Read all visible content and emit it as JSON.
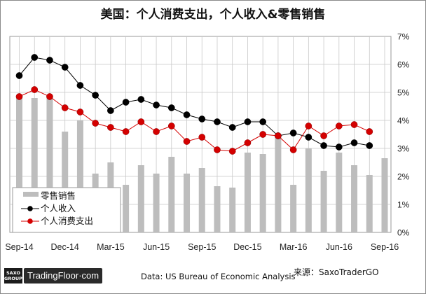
{
  "title": "美国：个人消费支出，个人收入&零售销售",
  "source_note": "Data: US Bureau of Economic Analysis",
  "source_label": "来源：SaxoTraderGO",
  "logo": {
    "saxo_line1": "SAXO",
    "saxo_line2": "GROUP",
    "brand": "TradingFloor·com"
  },
  "chart_data": {
    "type": "bar+line",
    "x_tick_labels": [
      "Sep-14",
      "Dec-14",
      "Mar-15",
      "Jun-15",
      "Sep-15",
      "Dec-15",
      "Mar-16",
      "Jun-16",
      "Sep-16"
    ],
    "y_tick_labels": [
      "0%",
      "1%",
      "2%",
      "3%",
      "4%",
      "5%",
      "6%",
      "7%"
    ],
    "ylim": [
      0,
      7
    ],
    "months": [
      "Sep-14",
      "Oct-14",
      "Nov-14",
      "Dec-14",
      "Jan-15",
      "Feb-15",
      "Mar-15",
      "Apr-15",
      "May-15",
      "Jun-15",
      "Jul-15",
      "Aug-15",
      "Sep-15",
      "Oct-15",
      "Nov-15",
      "Dec-15",
      "Jan-16",
      "Feb-16",
      "Mar-16",
      "Apr-16",
      "May-16",
      "Jun-16",
      "Jul-16",
      "Aug-16",
      "Sep-16"
    ],
    "legend": [
      "零售销售",
      "个人收入",
      "个人消费支出"
    ],
    "series": [
      {
        "name": "零售销售",
        "kind": "bar",
        "color": "#bdbdbd",
        "values": [
          4.9,
          4.8,
          4.8,
          3.6,
          4.0,
          2.1,
          2.5,
          1.7,
          2.4,
          2.1,
          2.7,
          2.1,
          2.3,
          1.65,
          1.6,
          2.85,
          2.8,
          3.5,
          1.7,
          3.0,
          2.2,
          2.85,
          2.4,
          2.05,
          2.65
        ]
      },
      {
        "name": "个人收入",
        "kind": "line",
        "color": "#000000",
        "values": [
          5.6,
          6.25,
          6.15,
          5.9,
          5.25,
          4.9,
          4.35,
          4.65,
          4.75,
          4.55,
          4.45,
          4.2,
          4.05,
          3.95,
          3.75,
          3.95,
          3.95,
          3.45,
          3.55,
          3.4,
          3.1,
          3.05,
          3.2,
          3.1,
          null
        ]
      },
      {
        "name": "个人消费支出",
        "kind": "line",
        "color": "#d40000",
        "values": [
          4.85,
          5.1,
          4.85,
          4.45,
          4.3,
          3.9,
          3.75,
          3.6,
          3.95,
          3.6,
          3.8,
          3.25,
          3.4,
          2.95,
          2.9,
          3.2,
          3.5,
          3.45,
          2.95,
          3.8,
          3.45,
          3.8,
          3.85,
          3.6,
          null
        ]
      }
    ],
    "grid": true,
    "y_axis_side": "right",
    "legend_position": "bottom-left"
  }
}
